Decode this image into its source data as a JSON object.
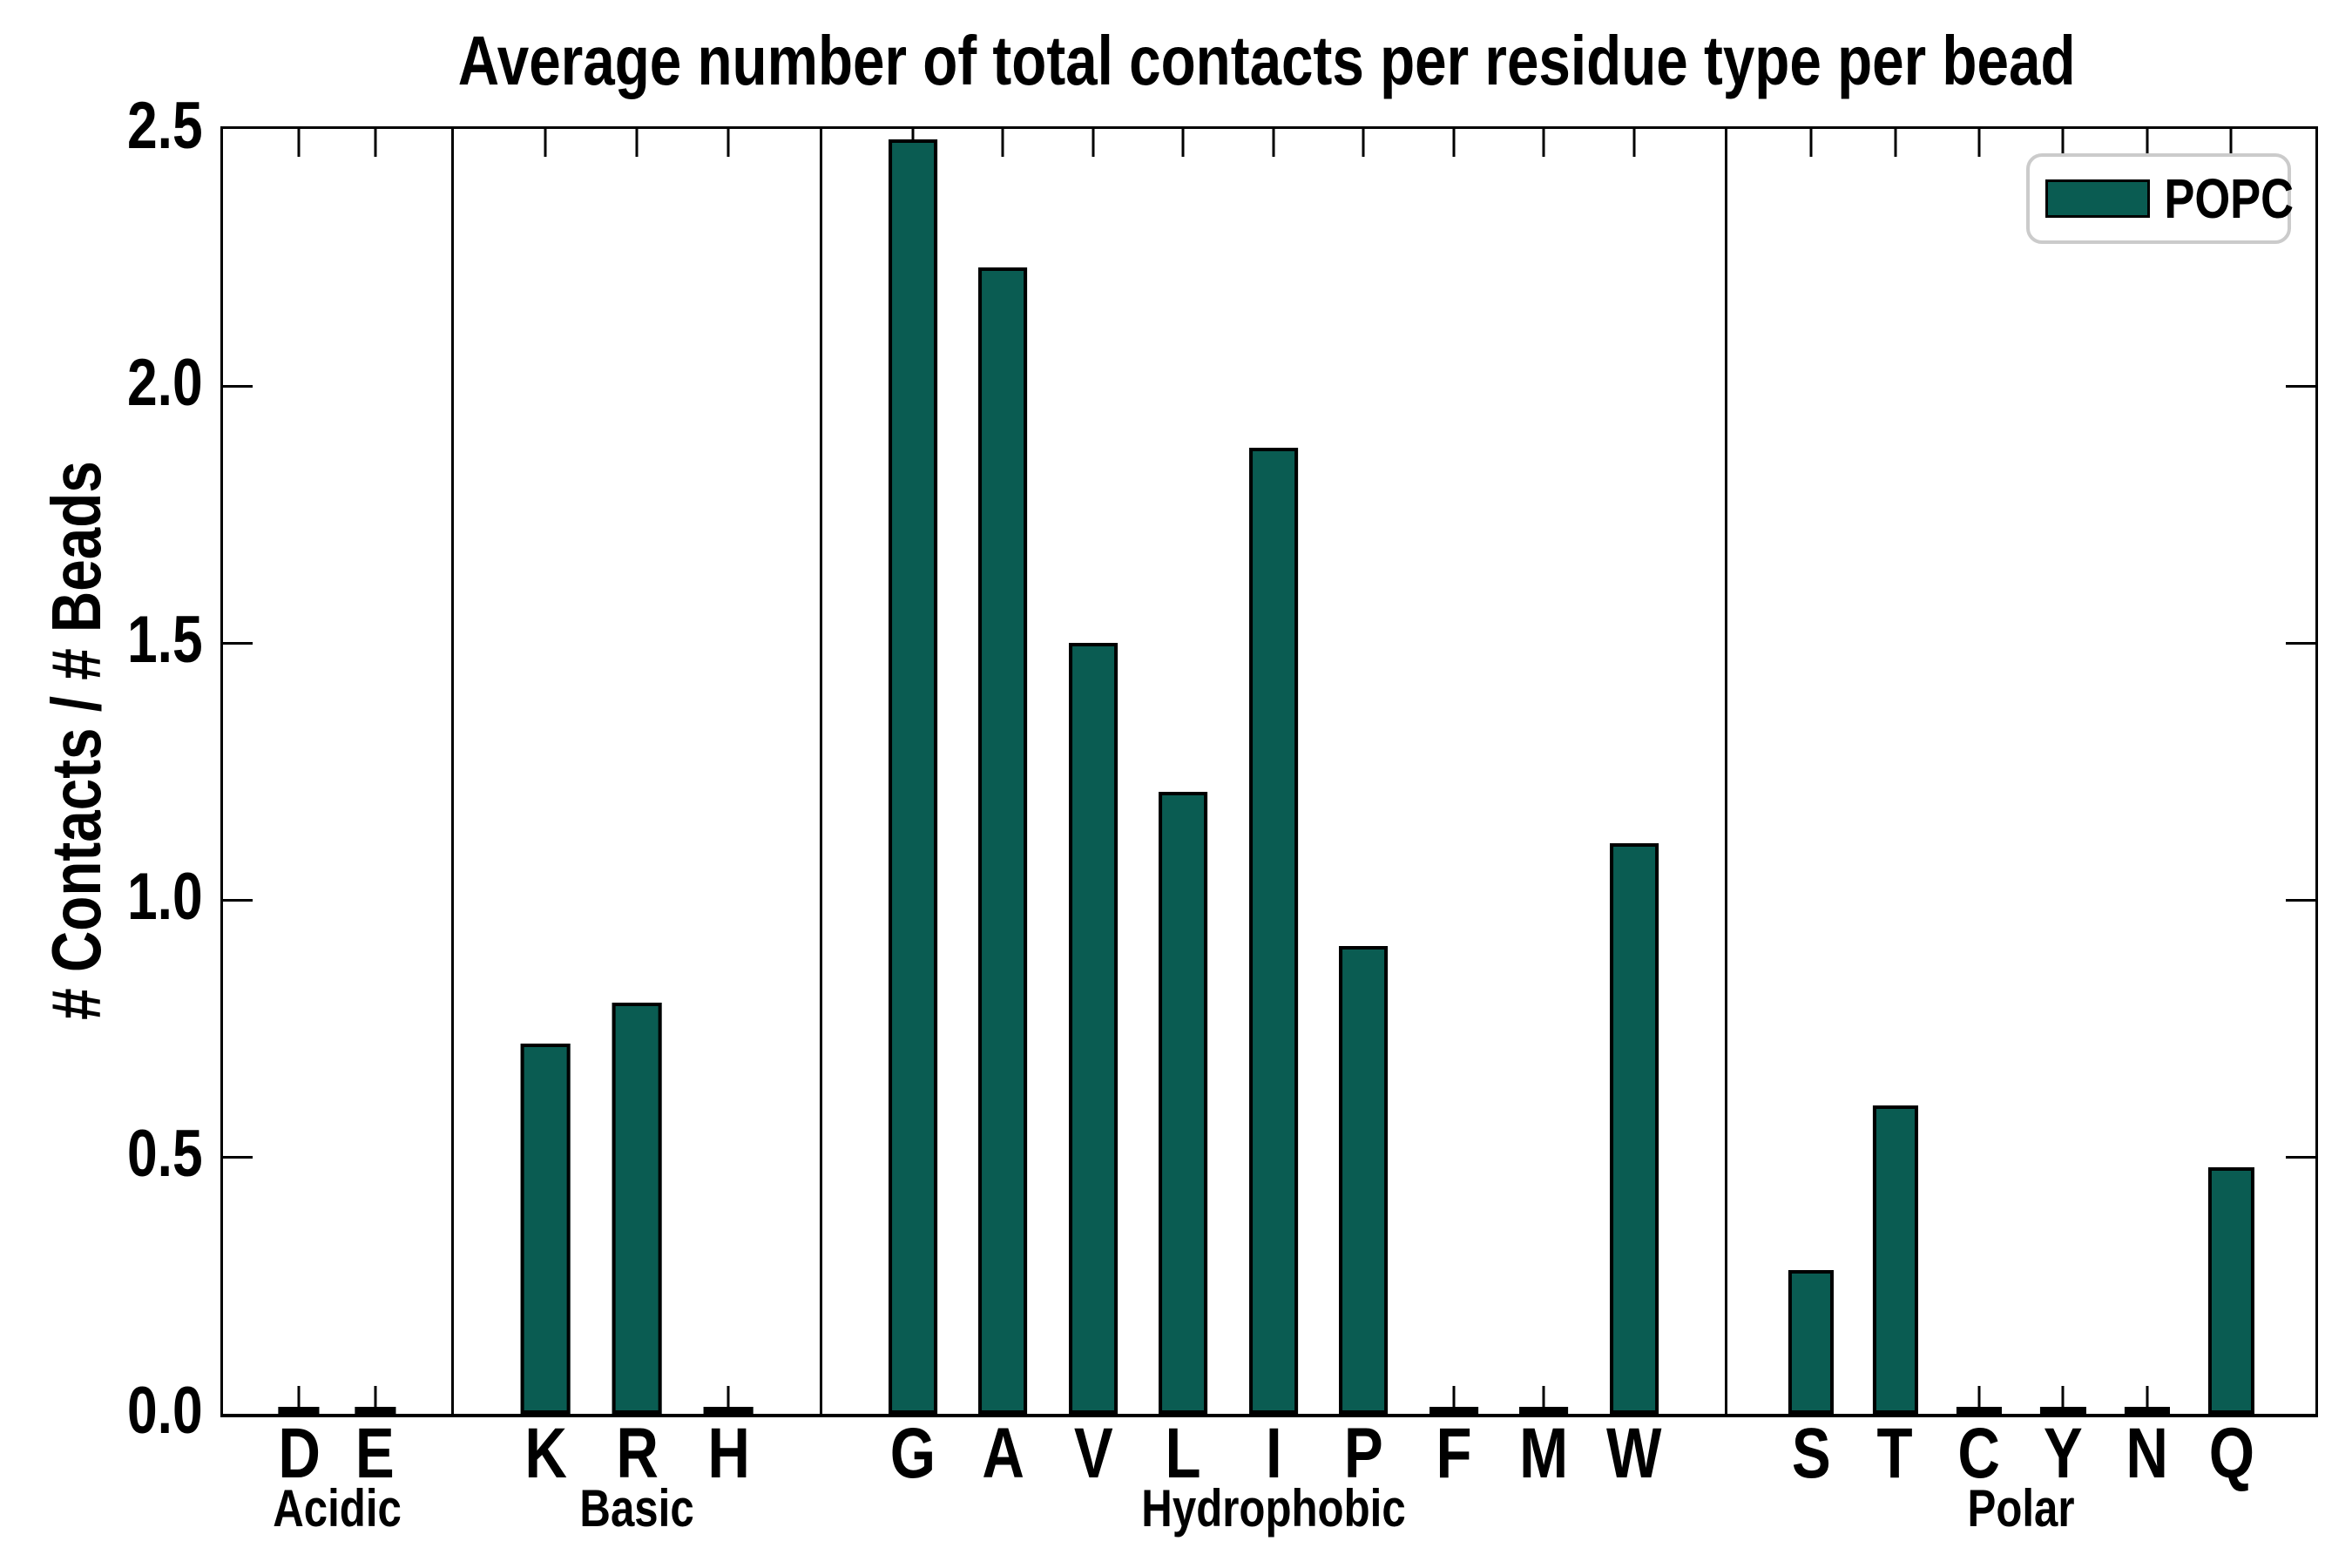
{
  "title": "Average number of total contacts per residue type per bead",
  "ylabel": "# Contacts / # Beads",
  "legend": {
    "label": "POPC"
  },
  "colors": {
    "bar_fill": "#0a5c52",
    "bar_edge": "#000000",
    "legend_border": "#cbcbcb",
    "axis": "#000000"
  },
  "y_ticks": [
    "2.5",
    "2.0",
    "1.5",
    "1.0",
    "0.5",
    "0.0"
  ],
  "chart_data": {
    "type": "bar",
    "title": "Average number of total contacts per residue type per bead",
    "xlabel": "",
    "ylabel": "# Contacts / # Beads",
    "ylim": [
      0,
      2.5
    ],
    "grid": false,
    "legend_position": "upper right",
    "series_name": "POPC",
    "groups": [
      {
        "label": "Acidic",
        "categories": [
          "D",
          "E"
        ],
        "values": [
          0.005,
          0.005
        ]
      },
      {
        "label": "Basic",
        "categories": [
          "K",
          "R",
          "H"
        ],
        "values": [
          0.72,
          0.8,
          0.005
        ]
      },
      {
        "label": "Hydrophobic",
        "categories": [
          "G",
          "A",
          "V",
          "L",
          "I",
          "P",
          "F",
          "M",
          "W"
        ],
        "values": [
          2.48,
          2.23,
          1.5,
          1.21,
          1.88,
          0.91,
          0.005,
          0.005,
          1.11
        ]
      },
      {
        "label": "Polar",
        "categories": [
          "S",
          "T",
          "C",
          "Y",
          "N",
          "Q"
        ],
        "values": [
          0.28,
          0.6,
          0.005,
          0.005,
          0.005,
          0.48
        ]
      }
    ],
    "panel_flex_weights": [
      263,
      422,
      1039,
      678
    ],
    "y_tick_values": [
      0.5,
      1.0,
      1.5,
      2.0
    ]
  }
}
